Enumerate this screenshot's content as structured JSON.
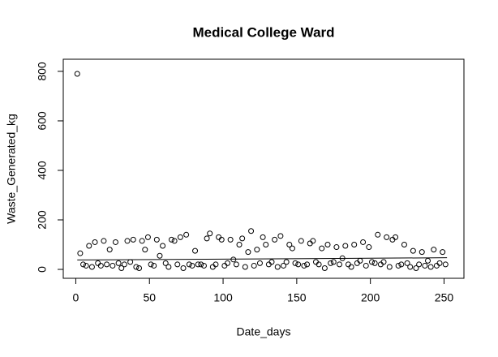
{
  "chart_data": {
    "type": "scatter",
    "title": "Medical College Ward",
    "x_label": "Date_days",
    "y_label": "Waste_Generated_kg",
    "xlim": [
      -8.5,
      263.5
    ],
    "ylim": [
      -36,
      849
    ],
    "xticks": [
      0,
      50,
      100,
      150,
      200,
      250
    ],
    "yticks": [
      0,
      200,
      400,
      600,
      800
    ],
    "series": [
      {
        "type": "scatter",
        "color": "#000000",
        "x": [
          1,
          3,
          5,
          7,
          9,
          11,
          13,
          15,
          17,
          19,
          21,
          23,
          25,
          27,
          29,
          31,
          33,
          35,
          37,
          39,
          41,
          43,
          45,
          47,
          49,
          51,
          53,
          55,
          57,
          59,
          61,
          63,
          65,
          67,
          69,
          71,
          73,
          75,
          77,
          79,
          81,
          83,
          85,
          87,
          89,
          91,
          93,
          95,
          97,
          99,
          101,
          103,
          105,
          107,
          109,
          111,
          113,
          115,
          117,
          119,
          121,
          123,
          125,
          127,
          129,
          131,
          133,
          135,
          137,
          139,
          141,
          143,
          145,
          147,
          149,
          151,
          153,
          155,
          157,
          159,
          161,
          163,
          165,
          167,
          169,
          171,
          173,
          175,
          177,
          179,
          181,
          183,
          185,
          187,
          189,
          191,
          193,
          195,
          197,
          199,
          201,
          203,
          205,
          207,
          209,
          211,
          213,
          215,
          217,
          219,
          221,
          223,
          225,
          227,
          229,
          231,
          233,
          235,
          237,
          239,
          241,
          243,
          245,
          247,
          249,
          251
        ],
        "values": [
          790,
          65,
          20,
          15,
          95,
          10,
          110,
          25,
          15,
          115,
          20,
          80,
          15,
          110,
          25,
          5,
          20,
          115,
          30,
          120,
          10,
          5,
          115,
          80,
          130,
          20,
          15,
          120,
          55,
          95,
          25,
          10,
          120,
          115,
          20,
          130,
          5,
          140,
          20,
          15,
          75,
          20,
          20,
          15,
          125,
          145,
          10,
          20,
          130,
          120,
          15,
          25,
          120,
          40,
          20,
          100,
          125,
          10,
          70,
          155,
          15,
          80,
          25,
          130,
          100,
          20,
          30,
          120,
          10,
          135,
          15,
          30,
          100,
          85,
          25,
          20,
          115,
          15,
          20,
          105,
          115,
          30,
          20,
          85,
          5,
          100,
          25,
          30,
          90,
          20,
          45,
          95,
          20,
          10,
          100,
          25,
          35,
          110,
          15,
          90,
          30,
          25,
          140,
          20,
          30,
          130,
          10,
          120,
          130,
          15,
          20,
          100,
          25,
          10,
          75,
          5,
          20,
          70,
          15,
          35,
          10,
          80,
          15,
          25,
          70,
          20
        ]
      },
      {
        "type": "line",
        "color": "#000000",
        "x": [
          1,
          252
        ],
        "values": [
          38,
          47
        ]
      }
    ]
  }
}
